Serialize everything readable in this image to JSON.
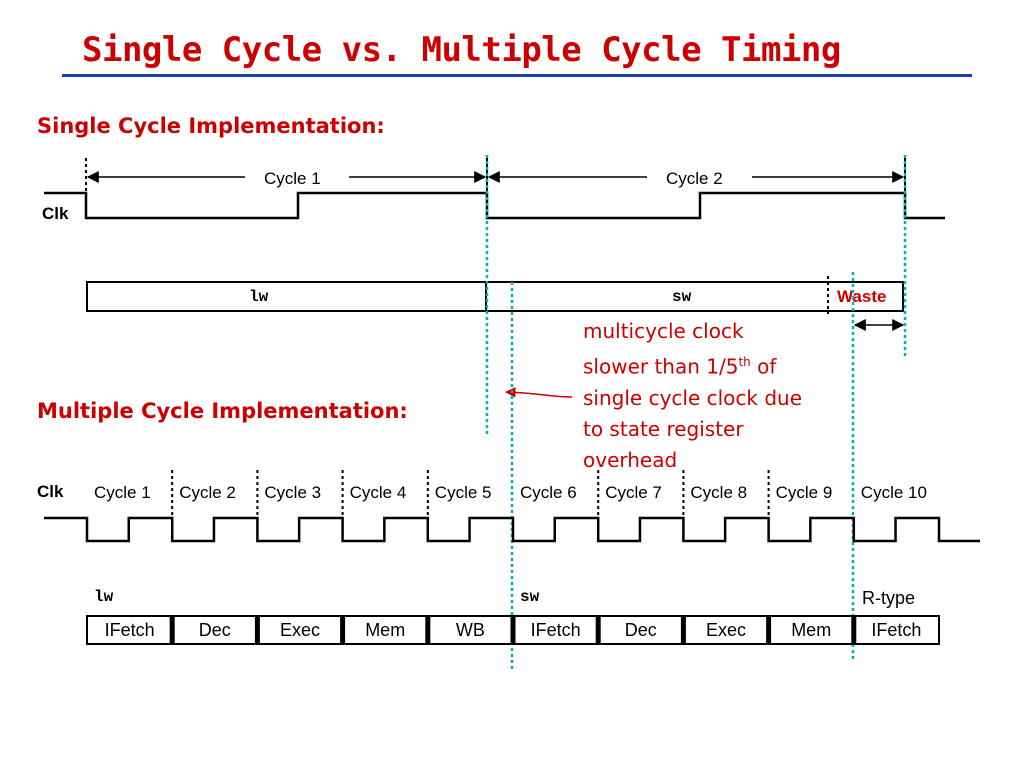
{
  "title": "Single Cycle vs. Multiple Cycle Timing",
  "single": {
    "heading": "Single Cycle Implementation:",
    "clk_label": "Clk",
    "cycle1": "Cycle 1",
    "cycle2": "Cycle 2",
    "instr1": "lw",
    "instr2": "sw",
    "waste": "Waste"
  },
  "note": {
    "line1": "multicycle clock",
    "line2a": "slower than 1/5",
    "line2sup": "th",
    "line2b": " of",
    "line3": "single cycle clock due",
    "line4": "to state register",
    "line5": "overhead"
  },
  "multi": {
    "heading": "Multiple Cycle Implementation:",
    "clk_label": "Clk",
    "cycles": [
      "Cycle 1",
      "Cycle 2",
      "Cycle 3",
      "Cycle 4",
      "Cycle 5",
      "Cycle 6",
      "Cycle 7",
      "Cycle 8",
      "Cycle 9",
      "Cycle 10"
    ],
    "instr_lw": "lw",
    "instr_sw": "sw",
    "instr_rtype": "R-type",
    "stages": [
      "IFetch",
      "Dec",
      "Exec",
      "Mem",
      "WB",
      "IFetch",
      "Dec",
      "Exec",
      "Mem",
      "IFetch"
    ]
  },
  "colors": {
    "title": "#cc0000",
    "rule": "#1a3fb3",
    "guide": "#00b3b3"
  }
}
